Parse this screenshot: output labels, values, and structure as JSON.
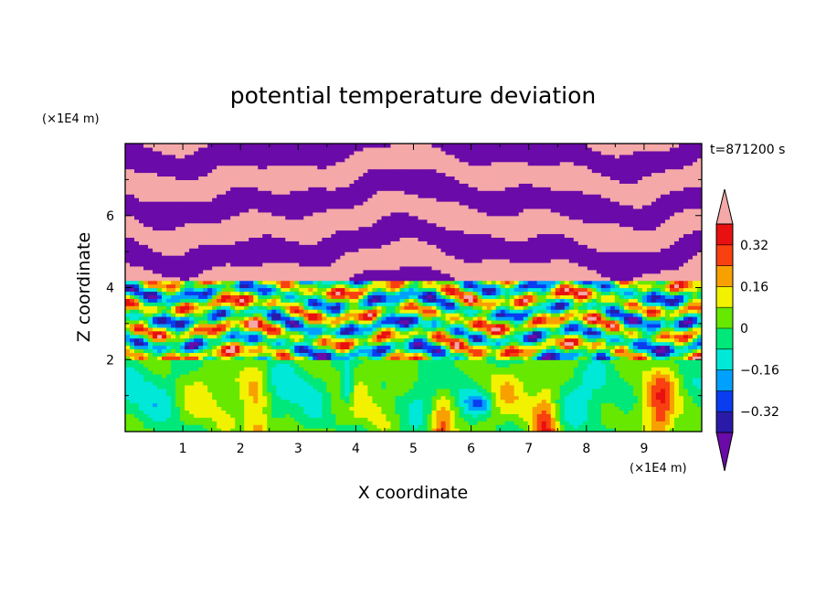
{
  "chart_data": {
    "type": "heatmap",
    "title": "potential temperature deviation",
    "xlabel": "X coordinate",
    "ylabel": "Z coordinate",
    "x_unit": "(×1E4 m)",
    "y_unit": "(×1E4 m)",
    "time_label": "t=871200 s",
    "xlim": [
      0,
      10
    ],
    "ylim": [
      0,
      8
    ],
    "x_ticks": [
      1,
      2,
      3,
      4,
      5,
      6,
      7,
      8,
      9
    ],
    "y_ticks": [
      2,
      4,
      6
    ],
    "colorbar": {
      "levels": [
        -0.4,
        -0.32,
        -0.24,
        -0.16,
        -0.08,
        0,
        0.08,
        0.16,
        0.24,
        0.32,
        0.4
      ],
      "labeled_levels": [
        0.32,
        0.16,
        0,
        -0.16,
        -0.32
      ],
      "label_text": [
        "0.32",
        "0.16",
        "0",
        "−0.16",
        "−0.32"
      ],
      "colors_low_to_high": [
        "#6a0aa8",
        "#2a1aa8",
        "#0a3cf0",
        "#00a0ff",
        "#00e8d8",
        "#00e87a",
        "#66e800",
        "#f2f200",
        "#f8a000",
        "#f84010",
        "#e81010",
        "#f5a8a8"
      ],
      "extend": "both"
    },
    "regions": [
      {
        "z_range": [
          0,
          2
        ],
        "description_values": "-0.24 to 0.32",
        "pattern": "convective cells"
      },
      {
        "z_range": [
          2,
          4.2
        ],
        "description_values": "-0.4 to 0.4",
        "pattern": "mixed layers"
      },
      {
        "z_range": [
          4.2,
          8
        ],
        "description_values": "-0.4 or 0.4",
        "pattern": "alternating layers"
      }
    ]
  }
}
